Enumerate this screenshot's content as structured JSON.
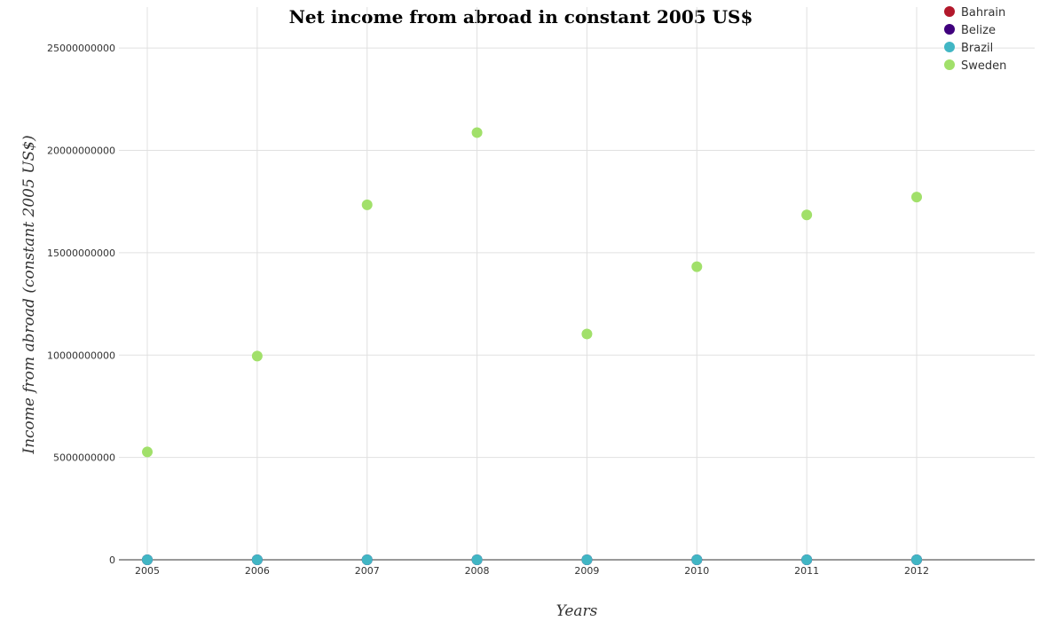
{
  "chart_data": {
    "type": "scatter",
    "title": "Net income from abroad in constant 2005 US$",
    "xlabel": "Years",
    "ylabel": "Income from abroad (constant 2005 US$)",
    "x": [
      "2005",
      "2006",
      "2007",
      "2008",
      "2009",
      "2010",
      "2011",
      "2012"
    ],
    "ylim": [
      0,
      27000000000
    ],
    "yticks": [
      0,
      5000000000,
      10000000000,
      15000000000,
      20000000000,
      25000000000
    ],
    "ytick_labels": [
      "0",
      "5000000000",
      "10000000000",
      "15000000000",
      "20000000000",
      "25000000000"
    ],
    "grid": true,
    "legend_position": "top-right",
    "series": [
      {
        "name": "Bahrain",
        "color": "#b2182b",
        "values": [
          0,
          0,
          0,
          0,
          0,
          0,
          0,
          0
        ]
      },
      {
        "name": "Belize",
        "color": "#3f007d",
        "values": [
          0,
          0,
          0,
          0,
          0,
          0,
          0,
          0
        ]
      },
      {
        "name": "Brazil",
        "color": "#41b6c4",
        "values": [
          0,
          0,
          0,
          0,
          0,
          0,
          0,
          0
        ]
      },
      {
        "name": "Sweden",
        "color": "#a1e06a",
        "values": [
          5270000000,
          9950000000,
          17340000000,
          20870000000,
          11030000000,
          14320000000,
          16850000000,
          17720000000
        ]
      }
    ]
  }
}
